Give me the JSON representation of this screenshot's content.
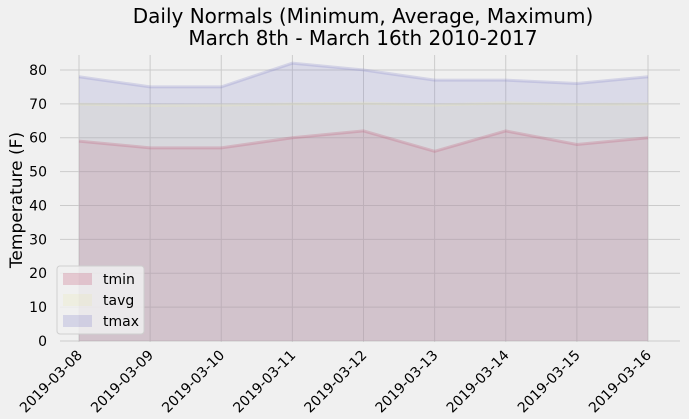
{
  "chart_data": {
    "type": "area",
    "title": "Daily Normals (Minimum, Average, Maximum)",
    "subtitle": "March 8th - March 16th 2010-2017",
    "xlabel": "",
    "ylabel": "Temperature (F)",
    "categories": [
      "2019-03-08",
      "2019-03-09",
      "2019-03-10",
      "2019-03-11",
      "2019-03-12",
      "2019-03-13",
      "2019-03-14",
      "2019-03-15",
      "2019-03-16"
    ],
    "ylim": [
      0,
      85
    ],
    "yticks": [
      0,
      10,
      20,
      30,
      40,
      50,
      60,
      70,
      80
    ],
    "grid": true,
    "stacked": false,
    "legend_position": "lower-left",
    "series": [
      {
        "name": "tmin",
        "color": "#c05070",
        "values": [
          59,
          57,
          57,
          60,
          62,
          56,
          62,
          58,
          60
        ]
      },
      {
        "name": "tavg",
        "color": "#e8e8b0",
        "values": [
          69.9,
          69.5,
          69.6,
          70.0,
          70.2,
          69.6,
          70.3,
          69.8,
          70.0
        ]
      },
      {
        "name": "tmax",
        "color": "#8080c8",
        "values": [
          78,
          75,
          75,
          82,
          80,
          77,
          77,
          76,
          78
        ]
      }
    ]
  }
}
